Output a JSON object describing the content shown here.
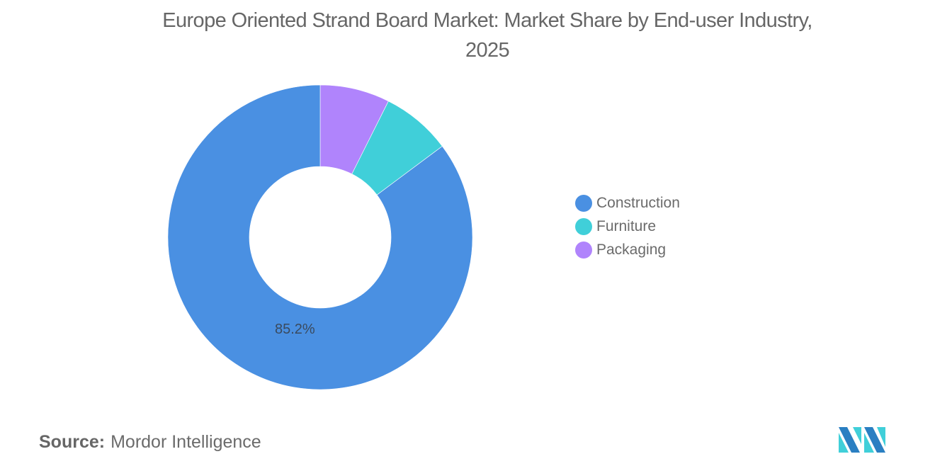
{
  "title": "Europe Oriented Strand Board Market: Market Share by End-user Industry, 2025",
  "title_lines": [
    "Europe Oriented Strand Board Market: Market Share by End-user Industry,",
    "2025"
  ],
  "legend": [
    {
      "label": "Construction",
      "color": "#4a90e2"
    },
    {
      "label": "Furniture",
      "color": "#40cfd9"
    },
    {
      "label": "Packaging",
      "color": "#b084fc"
    }
  ],
  "data_label": "85.2%",
  "source": {
    "label": "Source:",
    "value": "Mordor Intelligence"
  },
  "logo": {
    "icon": "mordor-intelligence-logo-icon",
    "colors": [
      "#2a7fc2",
      "#40cfd9"
    ]
  },
  "chart_data": {
    "type": "pie",
    "subtype": "donut",
    "title": "Europe Oriented Strand Board Market: Market Share by End-user Industry, 2025",
    "categories": [
      "Construction",
      "Furniture",
      "Packaging"
    ],
    "values": [
      85.2,
      7.4,
      7.4
    ],
    "unit": "%",
    "labels_shown": {
      "Construction": "85.2%"
    },
    "colors": [
      "#4a90e2",
      "#40cfd9",
      "#b084fc"
    ],
    "legend_position": "right",
    "start_angle": "12 o'clock, counter-clockwise order: Packaging, Furniture clockwise from top"
  }
}
